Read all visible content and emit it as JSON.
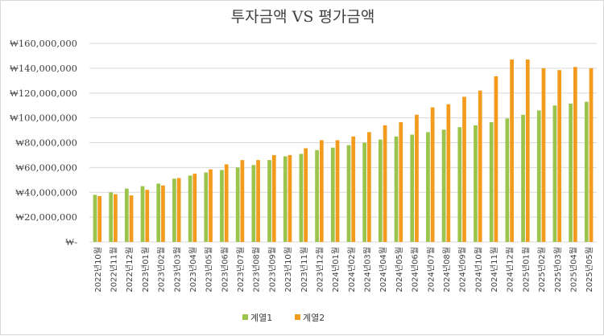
{
  "chart_data": {
    "type": "bar",
    "title": "투자금액 VS 평가금액",
    "xlabel": "",
    "ylabel": "",
    "ylim": [
      0,
      160000000
    ],
    "y_ticks": [
      0,
      20000000,
      40000000,
      60000000,
      80000000,
      100000000,
      120000000,
      140000000,
      160000000
    ],
    "y_tick_labels": [
      "₩-",
      "₩20,000,000",
      "₩40,000,000",
      "₩60,000,000",
      "₩80,000,000",
      "₩100,000,000",
      "₩120,000,000",
      "₩140,000,000",
      "₩160,000,000"
    ],
    "grid": true,
    "legend": "bottom",
    "categories": [
      "2022년10월",
      "2022년11월",
      "2022년12월",
      "2023년01월",
      "2023년02월",
      "2023년03월",
      "2023년04월",
      "2023년05월",
      "2023년06월",
      "2023년07월",
      "2023년08월",
      "2023년09월",
      "2023년10월",
      "2023년11월",
      "2023년12월",
      "2024년01월",
      "2024년02월",
      "2024년03월",
      "2024년04월",
      "2024년05월",
      "2024년06월",
      "2024년07월",
      "2024년08월",
      "2024년09월",
      "2024년10월",
      "2024년11월",
      "2024년12월",
      "2025년01월",
      "2025년02월",
      "2025년03월",
      "2025년04월",
      "2025년05월"
    ],
    "series": [
      {
        "name": "계열1",
        "color": "#9bc44c",
        "values": [
          38000000,
          40000000,
          43000000,
          45000000,
          47000000,
          51000000,
          53500000,
          56000000,
          58000000,
          60000000,
          62000000,
          66000000,
          69000000,
          71000000,
          74000000,
          76000000,
          78000000,
          80000000,
          82500000,
          85000000,
          86500000,
          88500000,
          90500000,
          92500000,
          94000000,
          96500000,
          99500000,
          102500000,
          106000000,
          110000000,
          111500000,
          113000000
        ]
      },
      {
        "name": "계열2",
        "color": "#f29b1d",
        "values": [
          37000000,
          38500000,
          37500000,
          42000000,
          45500000,
          51500000,
          55000000,
          58500000,
          62500000,
          66000000,
          66000000,
          70000000,
          70000000,
          75500000,
          82000000,
          82000000,
          85000000,
          88500000,
          94000000,
          96500000,
          102500000,
          108500000,
          111000000,
          117000000,
          122000000,
          133500000,
          147000000,
          147000000,
          140000000,
          138500000,
          141000000,
          140000000
        ]
      }
    ]
  }
}
